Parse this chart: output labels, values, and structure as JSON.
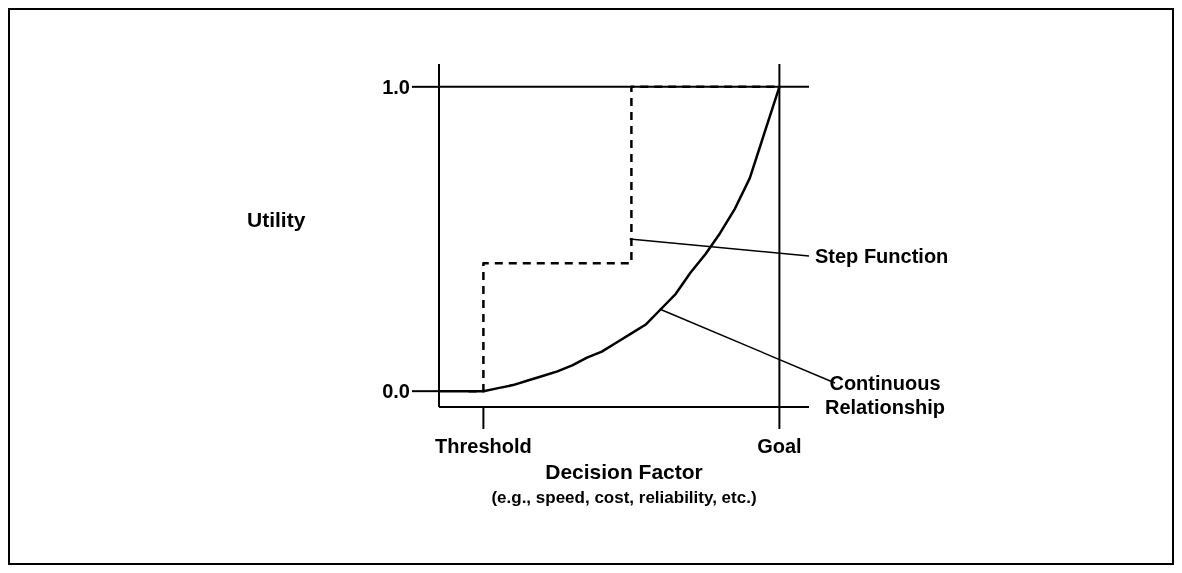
{
  "chart_data": {
    "type": "line",
    "xlabel": "Decision Factor",
    "ylabel": "Utility",
    "categories": [
      null,
      null,
      null,
      "Threshold",
      null,
      null,
      null,
      null,
      null,
      null,
      null,
      null,
      null,
      null,
      null,
      null,
      null,
      null,
      null,
      null,
      null,
      null,
      null,
      "Goal",
      null,
      null
    ],
    "ylim": [
      -0.052,
      1.075
    ],
    "yticks": [
      {
        "value": 0,
        "label": "0.0"
      },
      {
        "value": 1,
        "label": "1.0"
      }
    ],
    "series": [
      {
        "type": "step",
        "color": "#000000",
        "line_style": "dashed",
        "values": [
          null,
          null,
          0,
          0.42,
          0.42,
          0.42,
          0.42,
          0.42,
          0.42,
          0.42,
          0.42,
          0.42,
          0.42,
          1,
          1,
          1,
          1,
          1,
          1,
          1,
          1,
          1,
          1,
          1,
          null,
          null
        ]
      },
      {
        "type": "line",
        "color": "#000000",
        "line_style": "solid",
        "values": [
          0,
          0,
          0,
          0,
          0.01,
          0.02,
          0.035,
          0.05,
          0.065,
          0.085,
          0.11,
          0.13,
          0.16,
          0.19,
          0.22,
          0.27,
          0.32,
          0.39,
          0.45,
          0.52,
          0.6,
          0.7,
          0.85,
          1,
          null,
          null
        ]
      }
    ],
    "ref_lines": [
      {
        "axis": "y",
        "value": 1
      },
      {
        "axis": "x",
        "value": "Goal"
      }
    ],
    "annotations": [
      "Step Function",
      "Continuous Relationship",
      "(e.g., speed, cost, reliability, etc.)"
    ],
    "marker": "none"
  }
}
